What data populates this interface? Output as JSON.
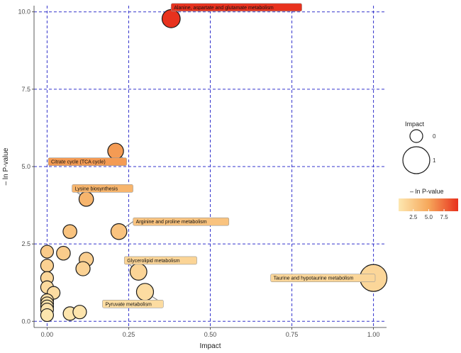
{
  "chart_data": {
    "type": "scatter",
    "xlabel": "Impact",
    "ylabel": "– ln P-value",
    "xlim": [
      -0.04,
      1.04
    ],
    "ylim": [
      -0.2,
      10.2
    ],
    "x_ticks": [
      0.0,
      0.25,
      0.5,
      0.75,
      1.0
    ],
    "x_tick_labels": [
      "0.00",
      "0.25",
      "0.50",
      "0.75",
      "1.00"
    ],
    "y_ticks": [
      0.0,
      2.5,
      5.0,
      7.5,
      10.0
    ],
    "y_tick_labels": [
      "0.0",
      "2.5",
      "5.0",
      "7.5",
      "10.0"
    ],
    "grid": true,
    "grid_color": "#3333cc",
    "color_scale": {
      "low": "#fde7b0",
      "mid": "#f6a85b",
      "high": "#e8321e",
      "min": 0.1,
      "max": 9.8
    },
    "points": [
      {
        "x": 0.38,
        "y": 9.78,
        "impact": 0.38,
        "label": "Alanine, aspartate and glutamate metabolism"
      },
      {
        "x": 0.21,
        "y": 5.5,
        "impact": 0.21,
        "label": "Citrate cycle (TCA cycle)"
      },
      {
        "x": 0.12,
        "y": 3.95,
        "impact": 0.12,
        "label": "Lysine biosynthesis"
      },
      {
        "x": 0.22,
        "y": 2.9,
        "impact": 0.22,
        "label": "Arginine and proline metabolism"
      },
      {
        "x": 0.28,
        "y": 1.6,
        "impact": 0.28,
        "label": "Glycerolipid metabolism"
      },
      {
        "x": 1.0,
        "y": 1.4,
        "impact": 1.0,
        "label": "Taurine and hypotaurine metabolism"
      },
      {
        "x": 0.3,
        "y": 0.95,
        "impact": 0.3,
        "label": "Pyruvate metabolism"
      },
      {
        "x": 0.07,
        "y": 2.9,
        "impact": 0.07,
        "label": ""
      },
      {
        "x": 0.05,
        "y": 2.2,
        "impact": 0.07,
        "label": ""
      },
      {
        "x": 0.12,
        "y": 2.0,
        "impact": 0.1,
        "label": ""
      },
      {
        "x": 0.11,
        "y": 1.7,
        "impact": 0.1,
        "label": ""
      },
      {
        "x": 0.0,
        "y": 2.25,
        "impact": 0.0,
        "label": ""
      },
      {
        "x": 0.0,
        "y": 1.8,
        "impact": 0.0,
        "label": ""
      },
      {
        "x": 0.0,
        "y": 1.4,
        "impact": 0.0,
        "label": ""
      },
      {
        "x": 0.0,
        "y": 1.1,
        "impact": 0.0,
        "label": ""
      },
      {
        "x": 0.02,
        "y": 0.92,
        "impact": 0.0,
        "label": ""
      },
      {
        "x": 0.0,
        "y": 0.68,
        "impact": 0.0,
        "label": ""
      },
      {
        "x": 0.0,
        "y": 0.58,
        "impact": 0.0,
        "label": ""
      },
      {
        "x": 0.0,
        "y": 0.48,
        "impact": 0.0,
        "label": ""
      },
      {
        "x": 0.0,
        "y": 0.38,
        "impact": 0.0,
        "label": ""
      },
      {
        "x": 0.0,
        "y": 0.2,
        "impact": 0.0,
        "label": ""
      },
      {
        "x": 0.07,
        "y": 0.25,
        "impact": 0.05,
        "label": ""
      },
      {
        "x": 0.1,
        "y": 0.3,
        "impact": 0.05,
        "label": ""
      }
    ],
    "legend_size": {
      "title": "Impact",
      "entries": [
        {
          "label": "0",
          "impact": 0
        },
        {
          "label": "1",
          "impact": 1
        }
      ]
    },
    "legend_color": {
      "title": "– ln P-value",
      "tick_values": [
        2.5,
        5.0,
        7.5
      ],
      "tick_labels": [
        "2.5",
        "5.0",
        "7.5"
      ]
    }
  }
}
